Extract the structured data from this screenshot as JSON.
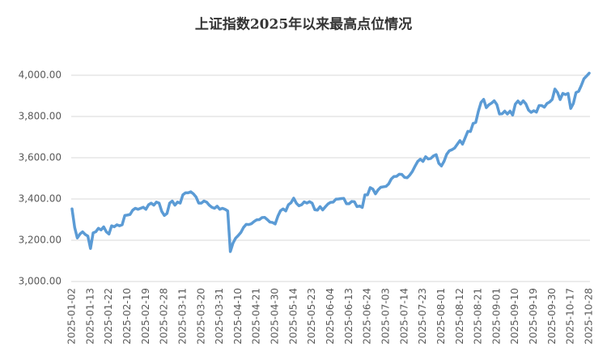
{
  "chart_data": {
    "type": "line",
    "title": "上证指数2025年以来最高点位情况",
    "categories": [
      "2025-01-02",
      null,
      null,
      null,
      null,
      null,
      null,
      "2025-01-13",
      null,
      null,
      null,
      null,
      null,
      null,
      "2025-01-22",
      null,
      null,
      null,
      null,
      null,
      null,
      "2025-02-10",
      null,
      null,
      null,
      null,
      null,
      null,
      "2025-02-19",
      null,
      null,
      null,
      null,
      null,
      null,
      "2025-02-28",
      null,
      null,
      null,
      null,
      null,
      null,
      "2025-03-11",
      null,
      null,
      null,
      null,
      null,
      null,
      "2025-03-20",
      null,
      null,
      null,
      null,
      null,
      null,
      "2025-03-31",
      null,
      null,
      null,
      null,
      null,
      null,
      "2025-04-10",
      null,
      null,
      null,
      null,
      null,
      null,
      "2025-04-21",
      null,
      null,
      null,
      null,
      null,
      null,
      "2025-04-30",
      null,
      null,
      null,
      null,
      null,
      null,
      "2025-05-14",
      null,
      null,
      null,
      null,
      null,
      null,
      "2025-05-23",
      null,
      null,
      null,
      null,
      null,
      null,
      "2025-06-04",
      null,
      null,
      null,
      null,
      null,
      null,
      "2025-06-13",
      null,
      null,
      null,
      null,
      null,
      null,
      "2025-06-24",
      null,
      null,
      null,
      null,
      null,
      null,
      "2025-07-03",
      null,
      null,
      null,
      null,
      null,
      null,
      "2025-07-14",
      null,
      null,
      null,
      null,
      null,
      null,
      "2025-07-23",
      null,
      null,
      null,
      null,
      null,
      null,
      "2025-08-01",
      null,
      null,
      null,
      null,
      null,
      null,
      "2025-08-12",
      null,
      null,
      null,
      null,
      null,
      null,
      "2025-08-21",
      null,
      null,
      null,
      null,
      null,
      null,
      "2025-09-01",
      null,
      null,
      null,
      null,
      null,
      null,
      "2025-09-10",
      null,
      null,
      null,
      null,
      null,
      null,
      "2025-09-19",
      null,
      null,
      null,
      null,
      null,
      null,
      "2025-09-30",
      null,
      null,
      null,
      null,
      null,
      null,
      "2025-10-17",
      null,
      null,
      null,
      null,
      null,
      null,
      "2025-10-28"
    ],
    "values": [
      3352,
      3262,
      3211,
      3230,
      3241,
      3228,
      3220,
      3160,
      3236,
      3241,
      3258,
      3250,
      3265,
      3241,
      3230,
      3270,
      3265,
      3275,
      3270,
      3275,
      3320,
      3322,
      3325,
      3346,
      3355,
      3350,
      3355,
      3360,
      3350,
      3372,
      3380,
      3370,
      3385,
      3380,
      3340,
      3320,
      3330,
      3380,
      3390,
      3370,
      3385,
      3380,
      3420,
      3430,
      3430,
      3435,
      3425,
      3410,
      3380,
      3380,
      3390,
      3385,
      3370,
      3360,
      3355,
      3365,
      3350,
      3355,
      3350,
      3342,
      3145,
      3186,
      3210,
      3223,
      3238,
      3262,
      3277,
      3276,
      3280,
      3291,
      3299,
      3300,
      3310,
      3311,
      3300,
      3288,
      3286,
      3279,
      3316,
      3343,
      3352,
      3342,
      3372,
      3382,
      3404,
      3380,
      3367,
      3372,
      3386,
      3380,
      3387,
      3380,
      3348,
      3346,
      3363,
      3347,
      3362,
      3376,
      3384,
      3385,
      3399,
      3400,
      3402,
      3403,
      3377,
      3377,
      3388,
      3387,
      3363,
      3366,
      3359,
      3420,
      3420,
      3455,
      3448,
      3425,
      3444,
      3457,
      3459,
      3461,
      3473,
      3497,
      3509,
      3510,
      3520,
      3519,
      3505,
      3503,
      3516,
      3534,
      3559,
      3582,
      3593,
      3582,
      3605,
      3594,
      3597,
      3609,
      3615,
      3573,
      3560,
      3583,
      3617,
      3634,
      3639,
      3647,
      3665,
      3683,
      3666,
      3697,
      3728,
      3727,
      3766,
      3771,
      3825,
      3868,
      3883,
      3843,
      3857,
      3865,
      3876,
      3858,
      3812,
      3813,
      3826,
      3812,
      3826,
      3807,
      3860,
      3875,
      3860,
      3876,
      3861,
      3831,
      3820,
      3828,
      3821,
      3853,
      3853,
      3845,
      3863,
      3870,
      3883,
      3933,
      3916,
      3882,
      3912,
      3906,
      3912,
      3839,
      3863,
      3916,
      3922,
      3950,
      3983,
      3996,
      4010
    ],
    "color": "#5b9bd5",
    "ylim": [
      3000,
      4000
    ],
    "yticks": [
      {
        "value": 3000,
        "label": "3,000.00"
      },
      {
        "value": 3200,
        "label": "3,200.00"
      },
      {
        "value": 3400,
        "label": "3,400.00"
      },
      {
        "value": 3600,
        "label": "3,600.00"
      },
      {
        "value": 3800,
        "label": "3,800.00"
      },
      {
        "value": 4000,
        "label": "4,000.00"
      }
    ],
    "grid": true
  }
}
